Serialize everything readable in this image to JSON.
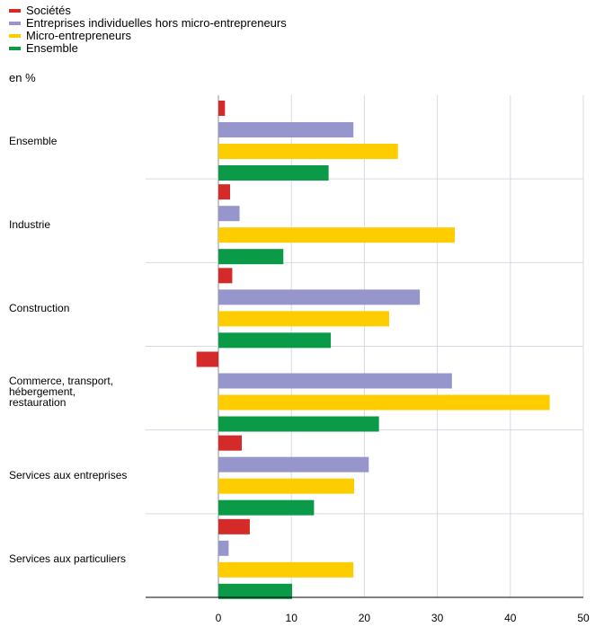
{
  "legend": [
    {
      "label": "Sociétés",
      "color": "#d42a2a"
    },
    {
      "label": "Entreprises individuelles hors micro-entrepreneurs",
      "color": "#9696cc"
    },
    {
      "label": "Micro-entrepreneurs",
      "color": "#fdcd00"
    },
    {
      "label": "Ensemble",
      "color": "#0b9a48"
    }
  ],
  "unit_label": "en %",
  "chart_data": {
    "type": "bar",
    "orientation": "horizontal",
    "title": "",
    "xlabel": "",
    "ylabel": "en %",
    "xlim": [
      -10,
      50
    ],
    "xticks": [
      0,
      10,
      20,
      30,
      40,
      50
    ],
    "grid": true,
    "legend_position": "top-left",
    "categories": [
      "Ensemble",
      "Industrie",
      "Construction",
      "Commerce, transport, hébergement, restauration",
      "Services aux entreprises",
      "Services aux particuliers"
    ],
    "series": [
      {
        "name": "Sociétés",
        "color": "#d42a2a",
        "values": [
          0.9,
          1.6,
          1.9,
          -3.0,
          3.2,
          4.3
        ]
      },
      {
        "name": "Entreprises individuelles hors micro-entrepreneurs",
        "color": "#9696cc",
        "values": [
          18.5,
          2.9,
          27.6,
          32.0,
          20.6,
          1.4
        ]
      },
      {
        "name": "Micro-entrepreneurs",
        "color": "#fdcd00",
        "values": [
          24.6,
          32.4,
          23.4,
          45.4,
          18.6,
          18.5
        ]
      },
      {
        "name": "Ensemble",
        "color": "#0b9a48",
        "values": [
          15.1,
          8.9,
          15.4,
          22.0,
          13.1,
          10.1
        ]
      }
    ]
  }
}
